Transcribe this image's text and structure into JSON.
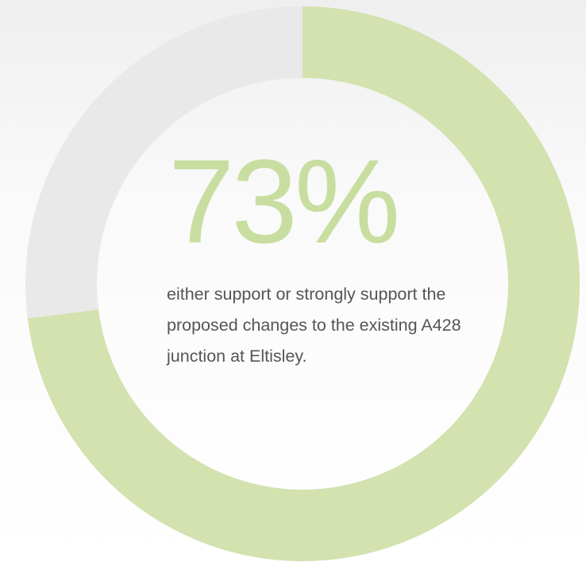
{
  "chart_data": {
    "type": "donut",
    "values": [
      73
    ],
    "value_labels": [
      "73%"
    ],
    "color": "#d3e2ae",
    "subtitle": "either support or strongly support the proposed changes to the existing A428 junction at Eltisley."
  }
}
